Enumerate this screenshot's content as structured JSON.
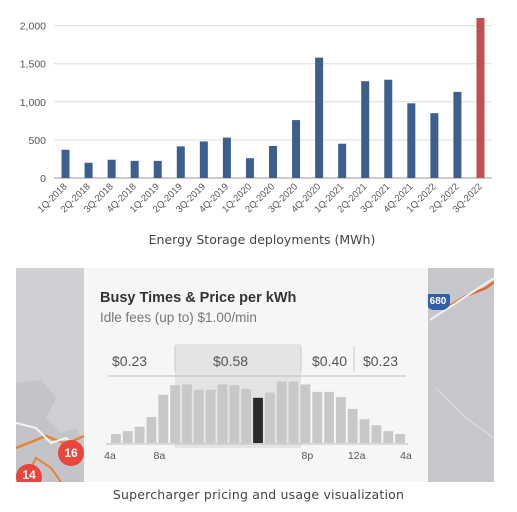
{
  "chart_data": {
    "type": "bar",
    "xlabel": "Energy Storage deployments (MWh)",
    "ylim": [
      0,
      2100
    ],
    "yticks": [
      0,
      500,
      1000,
      1500,
      2000
    ],
    "ytick_labels": [
      "0",
      "500",
      "1,000",
      "1,500",
      "2,000"
    ],
    "grid": true,
    "categories": [
      "1Q-2018",
      "2Q-2018",
      "3Q-2018",
      "4Q-2018",
      "1Q-2019",
      "2Q-2019",
      "3Q-2019",
      "4Q-2019",
      "1Q-2020",
      "2Q-2020",
      "3Q-2020",
      "4Q-2020",
      "1Q-2021",
      "2Q-2021",
      "3Q-2021",
      "4Q-2021",
      "1Q-2022",
      "2Q-2022",
      "3Q-2022"
    ],
    "values": [
      370,
      200,
      240,
      225,
      225,
      415,
      480,
      530,
      260,
      420,
      760,
      1580,
      450,
      1270,
      1290,
      980,
      850,
      1130,
      2100
    ],
    "colors": {
      "default": "#3c5f8e",
      "highlight": "#c0504d"
    },
    "highlight_index": 18
  },
  "usage": {
    "title": "Busy Times & Price per kWh",
    "subtitle": "Idle fees (up to) $1.00/min",
    "prices": [
      "$0.23",
      "$0.58",
      "$0.40",
      "$0.23"
    ],
    "tick_labels": [
      "4a",
      "8a",
      "8p",
      "12a",
      "4a"
    ],
    "busyness": [
      0.12,
      0.16,
      0.22,
      0.35,
      0.65,
      0.78,
      0.79,
      0.72,
      0.72,
      0.79,
      0.78,
      0.73,
      0.61,
      0.68,
      0.83,
      0.83,
      0.79,
      0.69,
      0.69,
      0.62,
      0.46,
      0.32,
      0.24,
      0.16,
      0.12
    ],
    "current_index": 12,
    "colors": {
      "bar": "#c8c8c8",
      "current": "#2b2b2b",
      "pin": "#e8453c"
    }
  },
  "map": {
    "pin_labels": [
      "16",
      "14"
    ],
    "highway": "680"
  },
  "caption": "Supercharger pricing and usage visualization"
}
